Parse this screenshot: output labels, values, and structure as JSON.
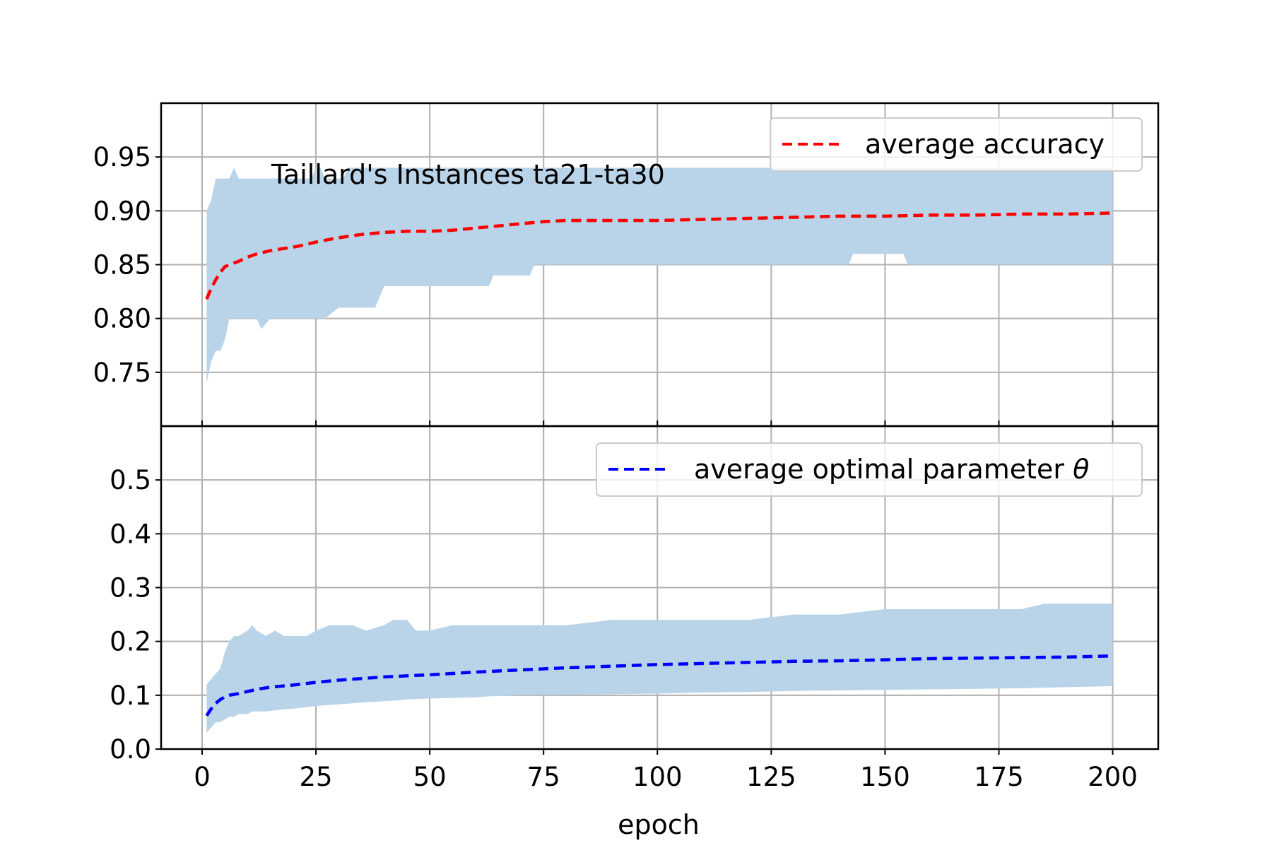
{
  "chart_data": [
    {
      "type": "line",
      "panel": "top",
      "annotation": "Taillard's Instances ta21-ta30",
      "xlabel": "",
      "ylabel": "",
      "xlim": [
        -9,
        210
      ],
      "ylim": [
        0.7,
        1.0
      ],
      "grid": true,
      "legend_position": "top-right",
      "xticks": [
        0,
        25,
        50,
        75,
        100,
        125,
        150,
        175,
        200
      ],
      "yticks": [
        0.75,
        0.8,
        0.85,
        0.9,
        0.95
      ],
      "ytick_labels": [
        "0.75",
        "0.80",
        "0.85",
        "0.90",
        "0.95"
      ],
      "colors": {
        "line": "#ff0000",
        "band": "#b9d3e8"
      },
      "series": [
        {
          "name": "average accuracy",
          "style": "dashed",
          "x": [
            1,
            2,
            3,
            4,
            5,
            6,
            8,
            10,
            12,
            15,
            18,
            21,
            25,
            30,
            35,
            40,
            45,
            50,
            55,
            60,
            65,
            70,
            75,
            80,
            90,
            100,
            110,
            120,
            130,
            140,
            150,
            160,
            170,
            180,
            190,
            200
          ],
          "values": [
            0.818,
            0.828,
            0.836,
            0.843,
            0.848,
            0.85,
            0.853,
            0.857,
            0.86,
            0.863,
            0.865,
            0.867,
            0.871,
            0.875,
            0.878,
            0.88,
            0.881,
            0.881,
            0.882,
            0.884,
            0.886,
            0.888,
            0.89,
            0.891,
            0.891,
            0.891,
            0.892,
            0.893,
            0.894,
            0.895,
            0.895,
            0.896,
            0.896,
            0.897,
            0.897,
            0.898
          ],
          "band_x": [
            1,
            2,
            3,
            4,
            5,
            6,
            7,
            8,
            10,
            12,
            13,
            15,
            20,
            24,
            25,
            26,
            27,
            30,
            31,
            32,
            34,
            38,
            40,
            45,
            50,
            55,
            60,
            63,
            64,
            70,
            72,
            73,
            74,
            75,
            80,
            100,
            120,
            140,
            142,
            143,
            150,
            154,
            155,
            160,
            200
          ],
          "band_upper": [
            0.9,
            0.91,
            0.93,
            0.93,
            0.93,
            0.93,
            0.94,
            0.93,
            0.93,
            0.93,
            0.93,
            0.93,
            0.93,
            0.93,
            0.94,
            0.94,
            0.93,
            0.93,
            0.93,
            0.94,
            0.94,
            0.94,
            0.94,
            0.94,
            0.94,
            0.94,
            0.94,
            0.94,
            0.94,
            0.94,
            0.94,
            0.94,
            0.94,
            0.94,
            0.94,
            0.94,
            0.94,
            0.94,
            0.94,
            0.94,
            0.94,
            0.94,
            0.94,
            0.94,
            0.94
          ],
          "band_lower": [
            0.74,
            0.76,
            0.77,
            0.77,
            0.78,
            0.8,
            0.8,
            0.8,
            0.8,
            0.8,
            0.79,
            0.8,
            0.8,
            0.8,
            0.8,
            0.8,
            0.8,
            0.81,
            0.81,
            0.81,
            0.81,
            0.81,
            0.83,
            0.83,
            0.83,
            0.83,
            0.83,
            0.83,
            0.84,
            0.84,
            0.84,
            0.85,
            0.85,
            0.85,
            0.85,
            0.85,
            0.85,
            0.85,
            0.85,
            0.86,
            0.86,
            0.86,
            0.85,
            0.85,
            0.85
          ]
        }
      ]
    },
    {
      "type": "line",
      "panel": "bottom",
      "xlabel": "epoch",
      "ylabel": "",
      "xlim": [
        -9,
        210
      ],
      "ylim": [
        0.0,
        0.6
      ],
      "grid": true,
      "legend_position": "top-right",
      "xticks": [
        0,
        25,
        50,
        75,
        100,
        125,
        150,
        175,
        200
      ],
      "xtick_labels": [
        "0",
        "25",
        "50",
        "75",
        "100",
        "125",
        "150",
        "175",
        "200"
      ],
      "yticks": [
        0.0,
        0.1,
        0.2,
        0.3,
        0.4,
        0.5
      ],
      "ytick_labels": [
        "0.0",
        "0.1",
        "0.2",
        "0.3",
        "0.4",
        "0.5"
      ],
      "colors": {
        "line": "#0000ff",
        "band": "#b9d3e8"
      },
      "series": [
        {
          "name": "average optimal parameter θ",
          "legend_prefix": "average optimal parameter ",
          "legend_symbol": "θ",
          "style": "dashed",
          "x": [
            1,
            2,
            3,
            4,
            5,
            6,
            8,
            10,
            12,
            15,
            20,
            25,
            30,
            40,
            50,
            60,
            70,
            80,
            90,
            100,
            110,
            120,
            130,
            140,
            150,
            160,
            170,
            180,
            190,
            200
          ],
          "values": [
            0.062,
            0.075,
            0.085,
            0.092,
            0.097,
            0.1,
            0.103,
            0.107,
            0.111,
            0.115,
            0.119,
            0.124,
            0.128,
            0.134,
            0.138,
            0.143,
            0.147,
            0.151,
            0.154,
            0.157,
            0.159,
            0.161,
            0.163,
            0.164,
            0.166,
            0.168,
            0.169,
            0.17,
            0.171,
            0.173
          ],
          "band_x": [
            1,
            2,
            3,
            4,
            5,
            6,
            7,
            8,
            10,
            11,
            12,
            14,
            16,
            18,
            20,
            23,
            25,
            28,
            33,
            36,
            40,
            42,
            45,
            47,
            50,
            55,
            60,
            63,
            70,
            80,
            90,
            100,
            110,
            120,
            130,
            140,
            150,
            160,
            170,
            180,
            185,
            190,
            200
          ],
          "band_upper": [
            0.12,
            0.13,
            0.14,
            0.15,
            0.18,
            0.2,
            0.21,
            0.21,
            0.22,
            0.23,
            0.22,
            0.21,
            0.22,
            0.21,
            0.21,
            0.21,
            0.22,
            0.23,
            0.23,
            0.22,
            0.23,
            0.24,
            0.24,
            0.22,
            0.22,
            0.23,
            0.23,
            0.23,
            0.23,
            0.23,
            0.24,
            0.24,
            0.24,
            0.24,
            0.25,
            0.25,
            0.26,
            0.26,
            0.26,
            0.26,
            0.27,
            0.27,
            0.27
          ],
          "band_lower": [
            0.03,
            0.04,
            0.05,
            0.05,
            0.055,
            0.06,
            0.06,
            0.065,
            0.065,
            0.07,
            0.07,
            0.07,
            0.072,
            0.074,
            0.075,
            0.078,
            0.08,
            0.082,
            0.085,
            0.087,
            0.089,
            0.09,
            0.092,
            0.093,
            0.094,
            0.095,
            0.096,
            0.098,
            0.1,
            0.101,
            0.102,
            0.103,
            0.105,
            0.106,
            0.108,
            0.109,
            0.11,
            0.111,
            0.112,
            0.113,
            0.114,
            0.115,
            0.117
          ]
        }
      ]
    }
  ]
}
